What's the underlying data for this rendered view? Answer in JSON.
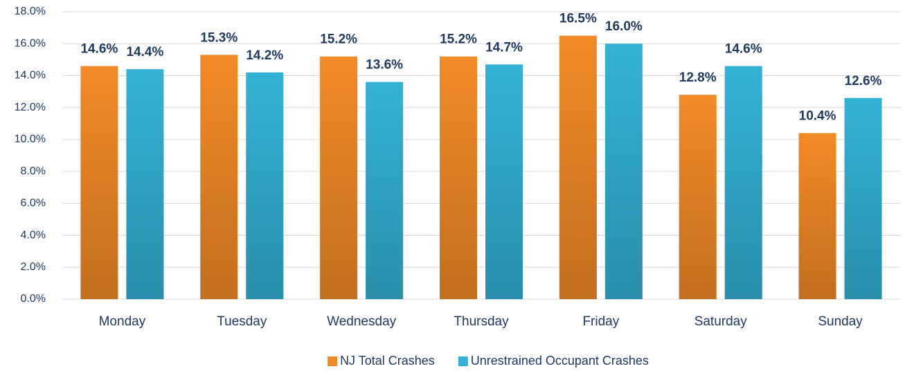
{
  "chart_data": {
    "type": "bar",
    "categories": [
      "Monday",
      "Tuesday",
      "Wednesday",
      "Thursday",
      "Friday",
      "Saturday",
      "Sunday"
    ],
    "series": [
      {
        "name": "NJ Total Crashes",
        "color": "#f28a27",
        "values": [
          14.6,
          15.3,
          15.2,
          15.2,
          16.5,
          12.8,
          10.4
        ],
        "value_labels": [
          "14.6%",
          "15.3%",
          "15.2%",
          "15.2%",
          "16.5%",
          "12.8%",
          "10.4%"
        ]
      },
      {
        "name": "Unrestrained Occupant Crashes",
        "color": "#33b2d6",
        "values": [
          14.4,
          14.2,
          13.6,
          14.7,
          16,
          14.6,
          12.6
        ],
        "value_labels": [
          "14.4%",
          "14.2%",
          "13.6%",
          "14.7%",
          "16.0%",
          "14.6%",
          "12.6%"
        ]
      }
    ],
    "ylim": [
      0,
      18
    ],
    "yticks": [
      {
        "value": 0,
        "label": "0.0%"
      },
      {
        "value": 2,
        "label": "2.0%"
      },
      {
        "value": 4,
        "label": "4.0%"
      },
      {
        "value": 6,
        "label": "6.0%"
      },
      {
        "value": 8,
        "label": "8.0%"
      },
      {
        "value": 10,
        "label": "10.0%"
      },
      {
        "value": 12,
        "label": "12.0%"
      },
      {
        "value": 14,
        "label": "14.0%"
      },
      {
        "value": 16,
        "label": "16.0%"
      },
      {
        "value": 18,
        "label": "18.0%"
      }
    ],
    "grid": true,
    "legend": "bottom"
  }
}
